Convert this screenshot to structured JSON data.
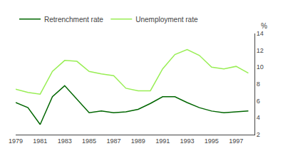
{
  "chart_data": {
    "type": "line",
    "x": [
      1979,
      1980,
      1981,
      1982,
      1983,
      1984,
      1985,
      1986,
      1987,
      1988,
      1989,
      1990,
      1991,
      1992,
      1993,
      1994,
      1995,
      1996,
      1997,
      1998
    ],
    "series": [
      {
        "name": "Unemployment rate",
        "color": "#99ee55",
        "values": [
          7.4,
          7.0,
          6.8,
          9.5,
          10.8,
          10.7,
          9.5,
          9.2,
          9.0,
          7.5,
          7.2,
          7.2,
          9.8,
          11.5,
          12.1,
          11.4,
          10.0,
          9.8,
          10.1,
          9.3
        ]
      },
      {
        "name": "Retrenchment rate",
        "color": "#006600",
        "values": [
          5.8,
          5.2,
          3.2,
          6.5,
          7.8,
          6.2,
          4.6,
          4.8,
          4.6,
          4.7,
          5.0,
          5.7,
          6.5,
          6.5,
          5.8,
          5.2,
          4.8,
          4.6,
          4.7,
          4.8
        ]
      }
    ],
    "ylabel": "%",
    "xlim": [
      1979,
      1998.5
    ],
    "xticks": [
      1979,
      1981,
      1983,
      1985,
      1987,
      1989,
      1991,
      1993,
      1995,
      1997
    ],
    "ylim": [
      2,
      14
    ],
    "yticks": [
      2,
      4,
      6,
      8,
      10,
      12,
      14
    ],
    "grid": false,
    "legend": "upper left"
  }
}
